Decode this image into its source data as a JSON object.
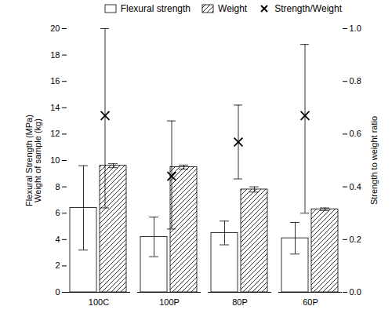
{
  "chart_data": {
    "type": "bar",
    "categories": [
      "100C",
      "100P",
      "80P",
      "60P"
    ],
    "ylabel": "Flexural Strength (MPa)\nWeight of sample (kg)",
    "y2label": "Strength to weight ratio",
    "ylim": [
      0,
      20
    ],
    "yticks": [
      0,
      2,
      4,
      6,
      8,
      10,
      12,
      14,
      16,
      18,
      20
    ],
    "y2lim": [
      0,
      1
    ],
    "y2ticks": [
      {
        "value": 0,
        "label": "0.0"
      },
      0.2,
      0.4,
      0.6,
      0.8,
      {
        "value": 1,
        "label": "1.0"
      }
    ],
    "grid": false,
    "legend": "upper right",
    "series": [
      {
        "name": "Flexural strength",
        "type": "bar",
        "color": "white",
        "values": [
          6.4,
          4.2,
          4.5,
          4.1
        ],
        "err_low": [
          3.2,
          1.5,
          0.9,
          1.2
        ],
        "err_high": [
          3.2,
          1.5,
          0.9,
          1.2
        ]
      },
      {
        "name": "Weight",
        "type": "bar",
        "color": "white",
        "values": [
          9.6,
          9.5,
          7.8,
          6.3
        ],
        "err_low": [
          0.15,
          0.15,
          0.2,
          0.1
        ],
        "err_high": [
          0.15,
          0.15,
          0.2,
          0.1
        ]
      },
      {
        "name": "Strength/Weight",
        "type": "scatter",
        "axis": "y2",
        "color": "black",
        "marker": "x",
        "values": [
          0.67,
          0.44,
          0.57,
          0.67
        ],
        "err_low": [
          0.35,
          0.2,
          0.14,
          0.37
        ],
        "err_high": [
          0.33,
          0.21,
          0.14,
          0.27
        ]
      }
    ]
  }
}
